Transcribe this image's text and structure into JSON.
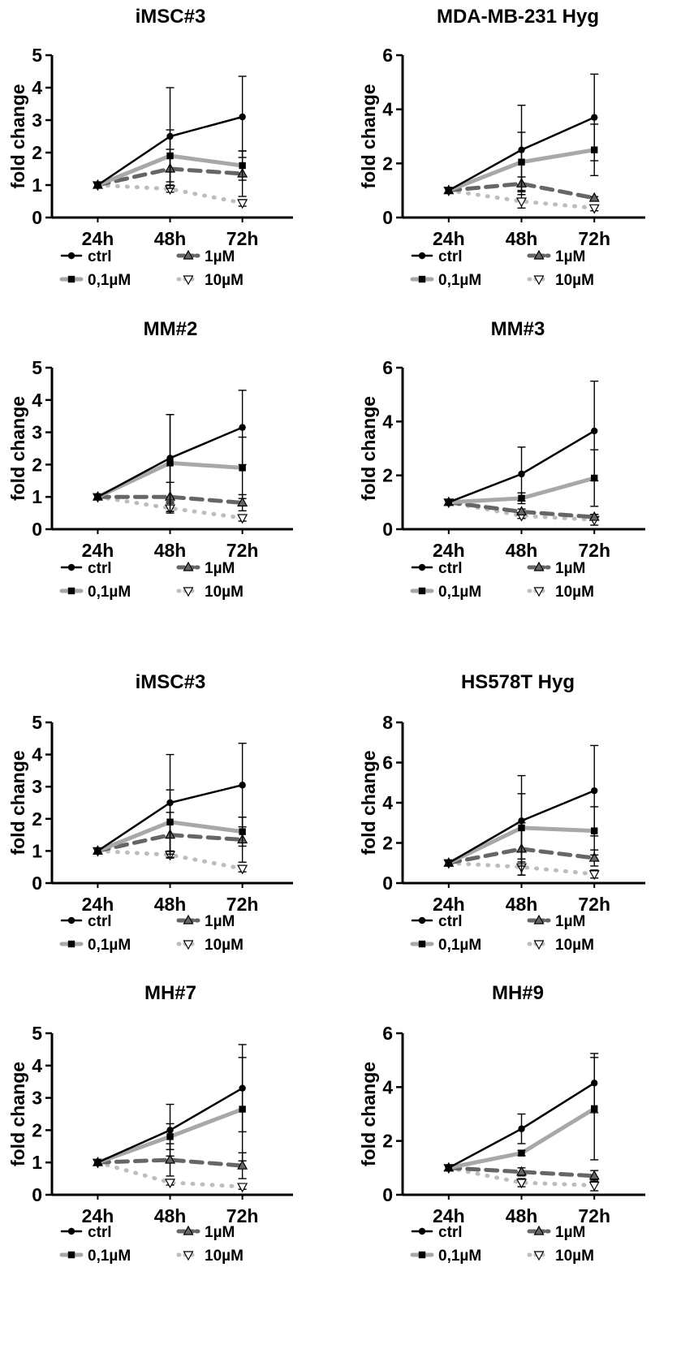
{
  "styles": {
    "ctrl": {
      "color": "#000000",
      "width": 2.5,
      "dash": "",
      "marker": "circle"
    },
    "0,1µM": {
      "color": "#a8a8a8",
      "width": 5,
      "dash": "",
      "marker": "square"
    },
    "1µM": {
      "color": "#666666",
      "width": 5,
      "dash": "14,9",
      "marker": "triangle-up"
    },
    "10µM": {
      "color": "#bdbdbd",
      "width": 5,
      "dash": "1,11",
      "marker": "triangle-down"
    }
  },
  "legend_labels": [
    "ctrl",
    "1µM",
    "0,1µM",
    "10µM"
  ],
  "chart_data": [
    {
      "type": "line",
      "title": "iMSC#3",
      "ylabel": "fold change",
      "xlabel": "",
      "categories": [
        "24h",
        "48h",
        "72h"
      ],
      "ylim": [
        0,
        5
      ],
      "yticks": [
        0,
        1,
        2,
        3,
        4,
        5
      ],
      "series": [
        {
          "name": "ctrl",
          "values": [
            1,
            2.5,
            3.1
          ],
          "err": [
            0,
            1.5,
            1.25
          ]
        },
        {
          "name": "0,1µM",
          "values": [
            1,
            1.9,
            1.6
          ],
          "err": [
            0,
            0.8,
            0.45
          ]
        },
        {
          "name": "1µM",
          "values": [
            1,
            1.5,
            1.35
          ],
          "err": [
            0,
            0.6,
            0.7
          ]
        },
        {
          "name": "10µM",
          "values": [
            1,
            0.88,
            0.45
          ],
          "err": [
            0,
            0.1,
            0.1
          ]
        }
      ]
    },
    {
      "type": "line",
      "title": "MDA-MB-231 Hyg",
      "ylabel": "fold change",
      "xlabel": "",
      "categories": [
        "24h",
        "48h",
        "72h"
      ],
      "ylim": [
        0,
        6
      ],
      "yticks": [
        0,
        2,
        4,
        6
      ],
      "series": [
        {
          "name": "ctrl",
          "values": [
            1,
            2.5,
            3.7
          ],
          "err": [
            0,
            1.65,
            1.6
          ]
        },
        {
          "name": "0,1µM",
          "values": [
            1,
            2.05,
            2.5
          ],
          "err": [
            0,
            1.1,
            0.95
          ]
        },
        {
          "name": "1µM",
          "values": [
            1,
            1.25,
            0.72
          ],
          "err": [
            0,
            0.25,
            0.05
          ]
        },
        {
          "name": "10µM",
          "values": [
            1,
            0.6,
            0.35
          ],
          "err": [
            0,
            0.25,
            0.1
          ]
        }
      ]
    },
    {
      "type": "line",
      "title": "MM#2",
      "ylabel": "fold change",
      "xlabel": "",
      "categories": [
        "24h",
        "48h",
        "72h"
      ],
      "ylim": [
        0,
        5
      ],
      "yticks": [
        0,
        1,
        2,
        3,
        4,
        5
      ],
      "series": [
        {
          "name": "ctrl",
          "values": [
            1,
            2.2,
            3.15
          ],
          "err": [
            0,
            1.35,
            1.15
          ]
        },
        {
          "name": "0,1µM",
          "values": [
            1,
            2.05,
            1.9
          ],
          "err": [
            0,
            1.5,
            0.95
          ]
        },
        {
          "name": "1µM",
          "values": [
            1,
            1.0,
            0.82
          ],
          "err": [
            0,
            0.45,
            0.25
          ]
        },
        {
          "name": "10µM",
          "values": [
            1,
            0.65,
            0.35
          ],
          "err": [
            0,
            0.15,
            0.1
          ]
        }
      ]
    },
    {
      "type": "line",
      "title": "MM#3",
      "ylabel": "fold change",
      "xlabel": "",
      "categories": [
        "24h",
        "48h",
        "72h"
      ],
      "ylim": [
        0,
        6
      ],
      "yticks": [
        0,
        2,
        4,
        6
      ],
      "series": [
        {
          "name": "ctrl",
          "values": [
            1,
            2.05,
            3.65
          ],
          "err": [
            0,
            1.0,
            1.85
          ]
        },
        {
          "name": "0,1µM",
          "values": [
            1,
            1.15,
            1.9
          ],
          "err": [
            0,
            0.2,
            1.05
          ]
        },
        {
          "name": "1µM",
          "values": [
            1,
            0.65,
            0.45
          ],
          "err": [
            0,
            0.1,
            0.1
          ]
        },
        {
          "name": "10µM",
          "values": [
            1,
            0.5,
            0.35
          ],
          "err": [
            0,
            0.1,
            0.2
          ]
        }
      ]
    },
    {
      "type": "line",
      "title": "iMSC#3",
      "ylabel": "fold change",
      "xlabel": "",
      "categories": [
        "24h",
        "48h",
        "72h"
      ],
      "ylim": [
        0,
        5
      ],
      "yticks": [
        0,
        1,
        2,
        3,
        4,
        5
      ],
      "series": [
        {
          "name": "ctrl",
          "values": [
            1,
            2.5,
            3.05
          ],
          "err": [
            0,
            1.5,
            1.3
          ]
        },
        {
          "name": "0,1µM",
          "values": [
            1,
            1.9,
            1.6
          ],
          "err": [
            0,
            1.0,
            0.45
          ]
        },
        {
          "name": "1µM",
          "values": [
            1,
            1.5,
            1.35
          ],
          "err": [
            0,
            0.7,
            0.7
          ]
        },
        {
          "name": "10µM",
          "values": [
            1,
            0.88,
            0.45
          ],
          "err": [
            0,
            0.1,
            0.1
          ]
        }
      ]
    },
    {
      "type": "line",
      "title": "HS578T Hyg",
      "ylabel": "fold change",
      "xlabel": "",
      "categories": [
        "24h",
        "48h",
        "72h"
      ],
      "ylim": [
        0,
        8
      ],
      "yticks": [
        0,
        2,
        4,
        6,
        8
      ],
      "series": [
        {
          "name": "ctrl",
          "values": [
            1,
            3.1,
            4.6
          ],
          "err": [
            0,
            2.25,
            2.25
          ]
        },
        {
          "name": "0,1µM",
          "values": [
            1,
            2.75,
            2.6
          ],
          "err": [
            0,
            1.7,
            1.2
          ]
        },
        {
          "name": "1µM",
          "values": [
            1,
            1.7,
            1.25
          ],
          "err": [
            0,
            1.3,
            0.4
          ]
        },
        {
          "name": "10µM",
          "values": [
            1,
            0.8,
            0.45
          ],
          "err": [
            0,
            0.4,
            0.2
          ]
        }
      ]
    },
    {
      "type": "line",
      "title": "MH#7",
      "ylabel": "fold change",
      "xlabel": "",
      "categories": [
        "24h",
        "48h",
        "72h"
      ],
      "ylim": [
        0,
        5
      ],
      "yticks": [
        0,
        1,
        2,
        3,
        4,
        5
      ],
      "series": [
        {
          "name": "ctrl",
          "values": [
            1,
            2.0,
            3.3
          ],
          "err": [
            0,
            0.8,
            1.35
          ]
        },
        {
          "name": "0,1µM",
          "values": [
            1,
            1.8,
            2.65
          ],
          "err": [
            0,
            0.4,
            1.6
          ]
        },
        {
          "name": "1µM",
          "values": [
            1,
            1.08,
            0.9
          ],
          "err": [
            0,
            0.5,
            0.4
          ]
        },
        {
          "name": "10µM",
          "values": [
            1,
            0.38,
            0.25
          ],
          "err": [
            0,
            0.08,
            0.08
          ]
        }
      ]
    },
    {
      "type": "line",
      "title": "MH#9",
      "ylabel": "fold change",
      "xlabel": "",
      "categories": [
        "24h",
        "48h",
        "72h"
      ],
      "ylim": [
        0,
        6
      ],
      "yticks": [
        0,
        2,
        4,
        6
      ],
      "series": [
        {
          "name": "ctrl",
          "values": [
            1,
            2.45,
            4.15
          ],
          "err": [
            0,
            0.55,
            1.1
          ]
        },
        {
          "name": "0,1µM",
          "values": [
            1,
            1.55,
            3.2
          ],
          "err": [
            0,
            0.1,
            1.9
          ]
        },
        {
          "name": "1µM",
          "values": [
            1,
            0.85,
            0.7
          ],
          "err": [
            0,
            0.15,
            0.2
          ]
        },
        {
          "name": "10µM",
          "values": [
            1,
            0.45,
            0.35
          ],
          "err": [
            0,
            0.15,
            0.2
          ]
        }
      ]
    }
  ]
}
